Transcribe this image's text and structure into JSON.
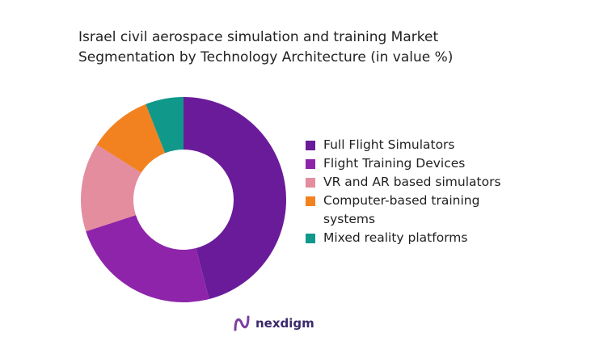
{
  "chart_data": {
    "type": "donut",
    "title": "Israel civil aerospace simulation and training Market Segmentation by Technology Architecture (in value %)",
    "categories": [
      "Full Flight Simulators",
      "Flight Training Devices",
      "VR and AR based simulators",
      "Computer-based training systems",
      "Mixed reality platforms"
    ],
    "values": [
      46,
      24,
      14,
      10,
      6
    ],
    "colors": [
      "#6a1b9a",
      "#8e24aa",
      "#e38d9f",
      "#f28220",
      "#10988a"
    ],
    "legend": "right"
  },
  "brand": "nexdigm"
}
